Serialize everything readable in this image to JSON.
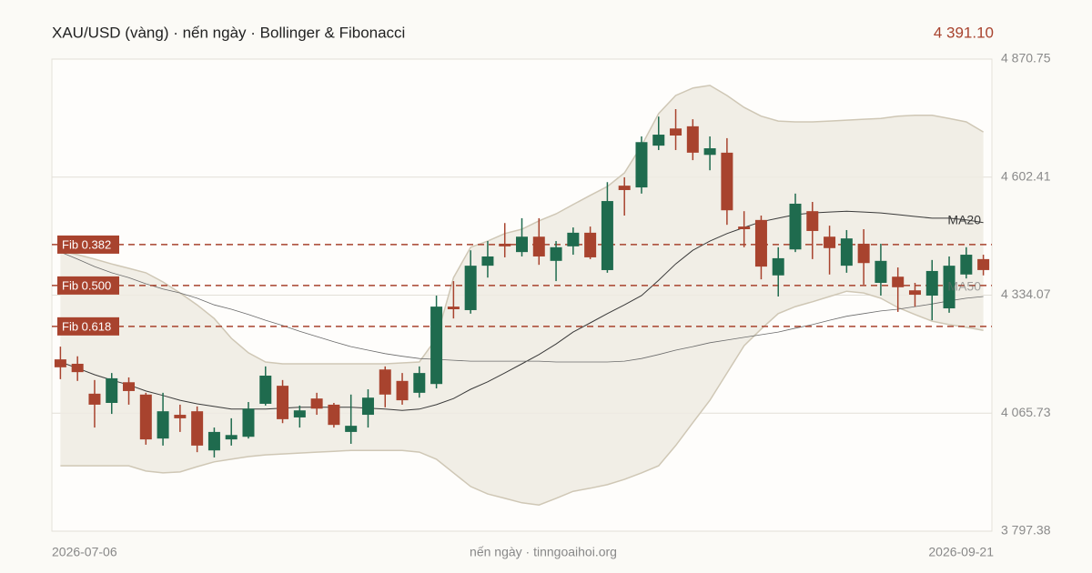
{
  "chart_data": {
    "type": "candlestick",
    "title": "XAU/USD (vàng) · nến ngày · Bollinger & Fibonacci",
    "last_price": "4 391.10",
    "source": "nến ngày · tinngoaihoi.org",
    "categories": [
      "2026-07-06",
      null,
      null,
      null,
      null,
      null,
      null,
      null,
      null,
      null,
      null,
      null,
      null,
      null,
      null,
      null,
      null,
      null,
      null,
      null,
      null,
      null,
      null,
      null,
      null,
      null,
      null,
      null,
      null,
      null,
      null,
      null,
      null,
      null,
      null,
      null,
      null,
      null,
      null,
      null,
      null,
      null,
      null,
      null,
      null,
      null,
      null,
      null,
      null,
      null,
      null,
      null,
      null,
      null,
      "2026-09-21"
    ],
    "open": [
      4188,
      4178,
      4110,
      4089,
      4136,
      4108,
      4008,
      4062,
      4070,
      3981,
      4006,
      4012,
      4087,
      4128,
      4056,
      4099,
      4085,
      4023,
      4062,
      4165,
      4139,
      4112,
      4132,
      4308,
      4300,
      4401,
      4451,
      4432,
      4467,
      4412,
      4445,
      4476,
      4391,
      4583,
      4579,
      4674,
      4713,
      4718,
      4653,
      4658,
      4490,
      4505,
      4379,
      4438,
      4525,
      4467,
      4401,
      4451,
      4362,
      4376,
      4345,
      4333,
      4304,
      4381,
      4416
    ],
    "high": [
      4217,
      4195,
      4141,
      4157,
      4147,
      4112,
      4112,
      4085,
      4081,
      4033,
      4054,
      4091,
      4172,
      4141,
      4083,
      4112,
      4089,
      4108,
      4120,
      4172,
      4157,
      4172,
      4333,
      4366,
      4436,
      4457,
      4498,
      4509,
      4509,
      4457,
      4488,
      4490,
      4591,
      4602,
      4695,
      4740,
      4757,
      4734,
      4695,
      4691,
      4525,
      4515,
      4443,
      4565,
      4546,
      4492,
      4482,
      4484,
      4451,
      4397,
      4362,
      4414,
      4422,
      4443,
      4426
    ],
    "low": [
      4143,
      4139,
      4033,
      4064,
      4085,
      3994,
      3992,
      4023,
      3977,
      3965,
      3992,
      4008,
      4083,
      4043,
      4033,
      4062,
      4033,
      3996,
      4033,
      4079,
      4085,
      4101,
      4122,
      4281,
      4292,
      4374,
      4420,
      4422,
      4403,
      4366,
      4426,
      4416,
      4385,
      4515,
      4565,
      4664,
      4664,
      4641,
      4618,
      4494,
      4443,
      4370,
      4331,
      4432,
      4416,
      4381,
      4385,
      4358,
      4333,
      4296,
      4308,
      4277,
      4294,
      4372,
      4379
    ],
    "close": [
      4170,
      4159,
      4085,
      4145,
      4116,
      4006,
      4070,
      4054,
      3992,
      4023,
      4016,
      4076,
      4151,
      4052,
      4072,
      4076,
      4039,
      4037,
      4101,
      4108,
      4095,
      4157,
      4308,
      4302,
      4401,
      4422,
      4445,
      4467,
      4422,
      4443,
      4476,
      4420,
      4548,
      4573,
      4682,
      4699,
      4697,
      4658,
      4668,
      4527,
      4484,
      4399,
      4418,
      4542,
      4480,
      4441,
      4463,
      4407,
      4412,
      4352,
      4335,
      4389,
      4401,
      4426,
      4391.1
    ],
    "up_color": "#1f6b4e",
    "down_color": "#a8432e",
    "bollinger": {
      "upper": [
        4434,
        4426,
        4416,
        4405,
        4395,
        4385,
        4364,
        4339,
        4312,
        4281,
        4236,
        4203,
        4182,
        4178,
        4178,
        4178,
        4178,
        4178,
        4178,
        4178,
        4180,
        4182,
        4236,
        4374,
        4443,
        4457,
        4474,
        4484,
        4503,
        4519,
        4540,
        4561,
        4581,
        4612,
        4674,
        4747,
        4788,
        4805,
        4811,
        4788,
        4761,
        4741,
        4730,
        4728,
        4728,
        4730,
        4732,
        4734,
        4736,
        4741,
        4743,
        4743,
        4736,
        4728,
        4705
      ],
      "lower": [
        3946,
        3946,
        3946,
        3946,
        3946,
        3934,
        3930,
        3932,
        3944,
        3955,
        3961,
        3967,
        3971,
        3973,
        3975,
        3977,
        3979,
        3981,
        3981,
        3981,
        3981,
        3977,
        3961,
        3930,
        3899,
        3882,
        3872,
        3862,
        3857,
        3872,
        3888,
        3895,
        3903,
        3915,
        3930,
        3946,
        3992,
        4044,
        4095,
        4157,
        4219,
        4257,
        4292,
        4308,
        4319,
        4331,
        4343,
        4339,
        4327,
        4306,
        4290,
        4275,
        4267,
        4261,
        4254
      ],
      "color": "#efebe2",
      "line_color": "#cfc7b5"
    },
    "series": [
      {
        "name": "MA20",
        "color": "#3a3a3a",
        "values": [
          4182,
          4168,
          4153,
          4141,
          4130,
          4116,
          4106,
          4095,
          4087,
          4081,
          4075,
          4075,
          4075,
          4077,
          4079,
          4079,
          4079,
          4079,
          4077,
          4075,
          4072,
          4075,
          4085,
          4099,
          4120,
          4137,
          4157,
          4178,
          4199,
          4223,
          4250,
          4271,
          4292,
          4312,
          4333,
          4368,
          4405,
          4436,
          4457,
          4474,
          4488,
          4501,
          4509,
          4517,
          4521,
          4523,
          4525,
          4523,
          4521,
          4517,
          4513,
          4509,
          4509,
          4505,
          4499
        ]
      },
      {
        "name": "MA50",
        "color": "#6b6b6b",
        "values": [
          4432,
          4416,
          4399,
          4385,
          4374,
          4360,
          4348,
          4339,
          4327,
          4312,
          4302,
          4290,
          4277,
          4265,
          4252,
          4240,
          4228,
          4217,
          4209,
          4201,
          4195,
          4190,
          4188,
          4186,
          4184,
          4184,
          4184,
          4184,
          4184,
          4182,
          4182,
          4182,
          4182,
          4184,
          4190,
          4199,
          4209,
          4217,
          4226,
          4232,
          4238,
          4244,
          4250,
          4259,
          4267,
          4277,
          4286,
          4292,
          4298,
          4302,
          4308,
          4314,
          4321,
          4327,
          4331
        ]
      }
    ],
    "fib_levels": [
      {
        "label": "Fib 0.382",
        "value": 4449
      },
      {
        "label": "Fib 0.500",
        "value": 4356
      },
      {
        "label": "Fib 0.618",
        "value": 4263
      }
    ],
    "fib_color": "#a8432e",
    "ylim": [
      3797.38,
      4870.75
    ],
    "yticks": [
      {
        "value": 3797.38,
        "label": "3 797.38"
      },
      {
        "value": 4065.73,
        "label": "4 065.73"
      },
      {
        "value": 4334.07,
        "label": "4 334.07"
      },
      {
        "value": 4602.41,
        "label": "4 602.41"
      },
      {
        "value": 4870.75,
        "label": "4 870.75"
      }
    ],
    "grid": true
  }
}
